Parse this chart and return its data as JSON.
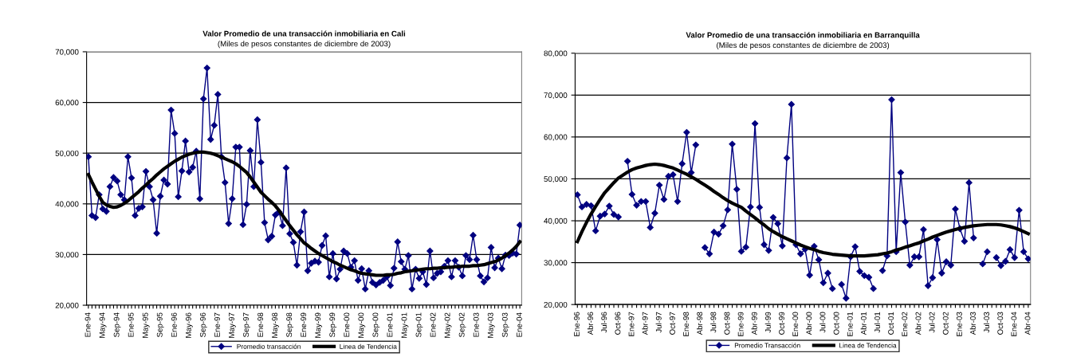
{
  "chart_data": [
    {
      "type": "line",
      "title": "Valor Promedio de una transacción inmobiliaria en Cali",
      "subtitle": "(Miles de pesos constantes de diciembre de 2003)",
      "categories": [
        "Ene-94",
        null,
        null,
        null,
        "May-94",
        null,
        null,
        null,
        "Sep-94",
        null,
        null,
        null,
        "Ene-95",
        null,
        null,
        null,
        "May-95",
        null,
        null,
        null,
        "Sep-95",
        null,
        null,
        null,
        "Ene-96",
        null,
        null,
        null,
        "May-96",
        null,
        null,
        null,
        "Sep-96",
        null,
        null,
        null,
        "Ene-97",
        null,
        null,
        null,
        "May-97",
        null,
        null,
        null,
        "Sep-97",
        null,
        null,
        null,
        "Ene-98",
        null,
        null,
        null,
        "May-98",
        null,
        null,
        null,
        "Sep-98",
        null,
        null,
        null,
        "Ene-99",
        null,
        null,
        null,
        "May-99",
        null,
        null,
        null,
        "Sep-99",
        null,
        null,
        null,
        "Ene-00",
        null,
        null,
        null,
        "May-00",
        null,
        null,
        null,
        "Sep-00",
        null,
        null,
        null,
        "Ene-01",
        null,
        null,
        null,
        "May-01",
        null,
        null,
        null,
        "Sep-01",
        null,
        null,
        null,
        "Ene-02",
        null,
        null,
        null,
        "May-02",
        null,
        null,
        null,
        "Sep-02",
        null,
        null,
        null,
        "Ene-03",
        null,
        null,
        null,
        "May-03",
        null,
        null,
        null,
        "Sep-03",
        null,
        null,
        null,
        "Ene-04"
      ],
      "series": [
        {
          "name": "Promedio transacción",
          "color": "#000080",
          "marker": "diamond",
          "values": [
            49300,
            37700,
            37300,
            41800,
            39000,
            38500,
            43400,
            45200,
            44500,
            41800,
            40800,
            49300,
            45100,
            37700,
            39100,
            39400,
            46400,
            43400,
            40800,
            34200,
            41500,
            44700,
            43900,
            58500,
            53900,
            41400,
            46500,
            52400,
            46300,
            47200,
            50400,
            41000,
            60700,
            66800,
            52700,
            55500,
            61600,
            49300,
            44200,
            36100,
            41000,
            51200,
            51200,
            35900,
            39900,
            50500,
            43400,
            56600,
            48200,
            36300,
            32900,
            33600,
            37800,
            38400,
            35700,
            47100,
            34100,
            32400,
            27900,
            34500,
            38400,
            26800,
            28300,
            28700,
            28500,
            31800,
            33700,
            25600,
            30200,
            25200,
            27100,
            30700,
            30200,
            27500,
            28800,
            24900,
            27200,
            23200,
            26800,
            24500,
            24000,
            24500,
            24900,
            25600,
            23900,
            27300,
            32500,
            28600,
            27100,
            29800,
            23200,
            27100,
            25300,
            26600,
            24100,
            30700,
            25400,
            26300,
            26600,
            27700,
            28800,
            25600,
            28800,
            27500,
            25800,
            29800,
            29000,
            33800,
            29000,
            25800,
            24600,
            25400,
            31400,
            27400,
            29300,
            27200,
            29900,
            29800,
            30300,
            30100,
            35800
          ]
        },
        {
          "name": "Linea de Tendencia",
          "color": "#000000",
          "marker": "none",
          "values": [
            45800,
            44300,
            42900,
            41500,
            40300,
            39800,
            39500,
            39300,
            39400,
            39700,
            40100,
            40600,
            41200,
            41800,
            42400,
            43100,
            43700,
            44400,
            45000,
            45700,
            46300,
            46900,
            47400,
            47900,
            48400,
            48800,
            49200,
            49500,
            49800,
            50000,
            50100,
            50200,
            50200,
            50100,
            50000,
            49800,
            49500,
            49200,
            48900,
            48600,
            48300,
            47900,
            47400,
            46800,
            46200,
            45300,
            44300,
            43300,
            42300,
            41600,
            40900,
            40300,
            39600,
            38700,
            37700,
            36700,
            35700,
            34800,
            33900,
            33100,
            32300,
            31800,
            31200,
            30700,
            30200,
            29800,
            29400,
            29000,
            28600,
            28300,
            27900,
            27600,
            27300,
            27000,
            26800,
            26500,
            26300,
            26200,
            26100,
            26000,
            25900,
            25900,
            25900,
            26000,
            26000,
            26100,
            26300,
            26400,
            26600,
            26700,
            26800,
            26900,
            27000,
            27100,
            27200,
            27200,
            27300,
            27300,
            27400,
            27400,
            27500,
            27500,
            27600,
            27600,
            27700,
            27700,
            27700,
            27800,
            27800,
            27900,
            28000,
            28200,
            28400,
            28600,
            28900,
            29300,
            29800,
            30300,
            30900,
            31600,
            32500
          ]
        }
      ],
      "ylim": [
        20000,
        70000
      ],
      "yticks": [
        {
          "value": 20000,
          "label": "20,000"
        },
        {
          "value": 30000,
          "label": "30,000"
        },
        {
          "value": 40000,
          "label": "40,000"
        },
        {
          "value": 50000,
          "label": "50,000"
        },
        {
          "value": 60000,
          "label": "60,000"
        },
        {
          "value": 70000,
          "label": "70,000"
        }
      ],
      "grid": "y",
      "legend": "bottom"
    },
    {
      "type": "line",
      "title": "Valor Promedio de una transacción inmobiliaria en Barranquilla",
      "subtitle": "(Miles de pesos constantes de diciembre de 2003)",
      "categories": [
        "Ene-96",
        null,
        null,
        "Abr-96",
        null,
        null,
        "Jul-96",
        null,
        null,
        "Oct-96",
        null,
        null,
        "Ene-97",
        null,
        null,
        "Abr-97",
        null,
        null,
        "Jul-97",
        null,
        null,
        "Oct-97",
        null,
        null,
        "Ene-98",
        null,
        null,
        "Abr-98",
        null,
        null,
        "Jul-98",
        null,
        null,
        "Oct-98",
        null,
        null,
        "Ene-99",
        null,
        null,
        "Abr-99",
        null,
        null,
        "Jul-99",
        null,
        null,
        "Oct-99",
        null,
        null,
        "Ene-00",
        null,
        null,
        "Abr-00",
        null,
        null,
        "Jul-00",
        null,
        null,
        "Oct-00",
        null,
        null,
        "Ene-01",
        null,
        null,
        "Abr-01",
        null,
        null,
        "Jul-01",
        null,
        null,
        "Oct-01",
        null,
        null,
        "Ene-02",
        null,
        null,
        "Abr-02",
        null,
        null,
        "Jul-02",
        null,
        null,
        "Oct-02",
        null,
        null,
        "Ene-03",
        null,
        null,
        "Abr-03",
        null,
        null,
        "Jul-03",
        null,
        null,
        "Oct-03",
        null,
        null,
        "Ene-04",
        null,
        null,
        "Abr-04"
      ],
      "series": [
        {
          "name": "Promedio Transacción",
          "color": "#000080",
          "marker": "diamond",
          "values": [
            46200,
            43300,
            43900,
            43600,
            37600,
            41100,
            41600,
            43500,
            41500,
            40900,
            null,
            54200,
            46300,
            43700,
            44600,
            44600,
            38400,
            41800,
            48500,
            45100,
            50600,
            51000,
            44600,
            53600,
            61100,
            51500,
            58100,
            null,
            33600,
            32100,
            37300,
            36800,
            38800,
            42600,
            58300,
            47500,
            32700,
            33700,
            43300,
            63200,
            43200,
            34300,
            32900,
            40800,
            39300,
            34000,
            55000,
            67800,
            34300,
            32100,
            33200,
            27000,
            33900,
            30700,
            25200,
            27500,
            23800,
            null,
            24800,
            21500,
            31400,
            33800,
            27900,
            26900,
            26500,
            23800,
            null,
            28100,
            31600,
            68900,
            32600,
            51500,
            39700,
            29400,
            31400,
            31400,
            37900,
            24500,
            26400,
            35500,
            27500,
            30200,
            29400,
            42800,
            38100,
            35100,
            49100,
            35900,
            null,
            29700,
            32600,
            null,
            31200,
            29300,
            30300,
            33100,
            31200,
            42500,
            32600,
            30900
          ]
        },
        {
          "name": "Linea de Tendencia",
          "color": "#000000",
          "marker": "none",
          "values": [
            35000,
            37400,
            39600,
            41600,
            43400,
            45100,
            46700,
            47900,
            49100,
            50200,
            50900,
            51600,
            52200,
            52600,
            52900,
            53200,
            53400,
            53500,
            53400,
            53200,
            52900,
            52600,
            52100,
            51600,
            51100,
            50500,
            49900,
            49200,
            48500,
            47800,
            47000,
            46300,
            45500,
            44800,
            44200,
            43700,
            43200,
            42300,
            41500,
            40700,
            39800,
            39000,
            38100,
            37400,
            36800,
            36200,
            35700,
            35200,
            34700,
            34200,
            33800,
            33400,
            33100,
            32700,
            32400,
            32200,
            32000,
            31900,
            31800,
            31700,
            31600,
            31600,
            31600,
            31600,
            31700,
            31800,
            31900,
            32100,
            32300,
            32600,
            33000,
            33300,
            33700,
            34000,
            34400,
            34700,
            35200,
            35600,
            36100,
            36500,
            36900,
            37300,
            37600,
            37900,
            38200,
            38400,
            38600,
            38800,
            38900,
            39000,
            39100,
            39100,
            39100,
            39000,
            38800,
            38600,
            38300,
            37900,
            37400,
            36900
          ]
        }
      ],
      "ylim": [
        20000,
        80000
      ],
      "yticks": [
        {
          "value": 20000,
          "label": "20,000"
        },
        {
          "value": 30000,
          "label": "30,000"
        },
        {
          "value": 40000,
          "label": "40,000"
        },
        {
          "value": 50000,
          "label": "50,000"
        },
        {
          "value": 60000,
          "label": "60,000"
        },
        {
          "value": 70000,
          "label": "70,000"
        },
        {
          "value": 80000,
          "label": "80,000"
        }
      ],
      "grid": "y",
      "legend": "bottom"
    }
  ]
}
